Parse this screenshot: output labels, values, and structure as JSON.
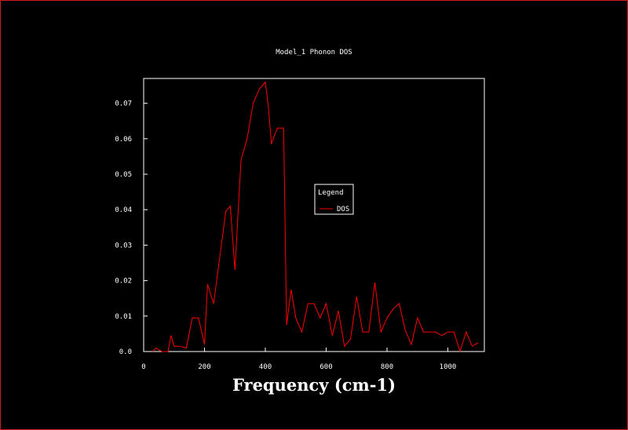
{
  "chart_data": {
    "type": "line",
    "title": "Model_1 Phonon DOS",
    "xlabel": "Frequency (cm-1)",
    "ylabel": "",
    "xlim": [
      0,
      1120
    ],
    "ylim": [
      0,
      0.077
    ],
    "xticks": [
      0,
      200,
      400,
      600,
      800,
      1000
    ],
    "yticks": [
      0.0,
      0.01,
      0.02,
      0.03,
      0.04,
      0.05,
      0.06,
      0.07
    ],
    "ytick_labels": [
      "0.0",
      "0.01",
      "0.02",
      "0.03",
      "0.04",
      "0.05",
      "0.06",
      "0.07"
    ],
    "grid": false,
    "legend": {
      "title": "Legend",
      "placement": "center-right"
    },
    "series": [
      {
        "name": "DOS",
        "color": "#ff0000",
        "x": [
          30,
          40,
          60,
          80,
          90,
          100,
          120,
          140,
          160,
          180,
          200,
          210,
          230,
          250,
          270,
          285,
          300,
          320,
          340,
          360,
          380,
          400,
          410,
          420,
          430,
          440,
          460,
          470,
          485,
          500,
          520,
          540,
          560,
          580,
          600,
          620,
          640,
          660,
          680,
          700,
          720,
          740,
          760,
          780,
          800,
          820,
          840,
          860,
          880,
          900,
          920,
          940,
          960,
          980,
          1000,
          1020,
          1040,
          1060,
          1080,
          1100
        ],
        "y": [
          0.0,
          0.001,
          0.0,
          0.0,
          0.0045,
          0.0015,
          0.0015,
          0.001,
          0.0095,
          0.0095,
          0.002,
          0.019,
          0.0135,
          0.0265,
          0.0395,
          0.041,
          0.023,
          0.054,
          0.06,
          0.07,
          0.074,
          0.076,
          0.069,
          0.0585,
          0.061,
          0.063,
          0.063,
          0.0075,
          0.0175,
          0.0095,
          0.0055,
          0.0135,
          0.0135,
          0.0095,
          0.0135,
          0.0045,
          0.0115,
          0.0015,
          0.0035,
          0.0155,
          0.0055,
          0.0055,
          0.0195,
          0.0055,
          0.0095,
          0.012,
          0.0135,
          0.006,
          0.002,
          0.0095,
          0.0055,
          0.0055,
          0.0055,
          0.0045,
          0.0055,
          0.0055,
          0.0,
          0.0055,
          0.0015,
          0.0025
        ]
      }
    ]
  }
}
